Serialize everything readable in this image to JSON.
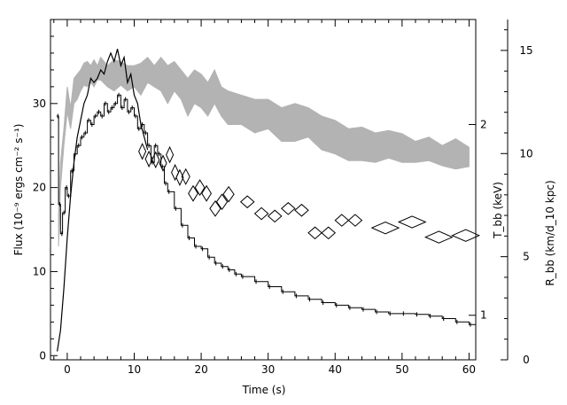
{
  "chart_data": {
    "type": "line",
    "xlabel": "Time (s)",
    "ylabel_left": "Flux (10⁻⁹ ergs cm⁻² s⁻¹)",
    "ylabel_right1": "T_bb (keV)",
    "ylabel_right2": "R_bb (km/d_10 kpc)",
    "xlim": [
      -2.5,
      61
    ],
    "ylim_flux": [
      -0.5,
      40
    ],
    "ylim_radius": [
      0,
      16.5
    ],
    "x_ticks": [
      0,
      10,
      20,
      30,
      40,
      50,
      60
    ],
    "x_tick_labels": [
      "0",
      "10",
      "20",
      "30",
      "40",
      "50",
      "60"
    ],
    "flux_ticks": [
      0,
      10,
      20,
      30
    ],
    "flux_tick_labels": [
      "0",
      "10",
      "20",
      "30"
    ],
    "temperature_ticks": [
      1,
      2
    ],
    "temperature_tick_labels": [
      "1",
      "2"
    ],
    "temperature_tick_flux_equivalent": [
      4.8,
      27.5
    ],
    "radius_ticks": [
      0,
      5,
      10,
      15
    ],
    "radius_tick_labels": [
      "0",
      "5",
      "10",
      "15"
    ],
    "series": [
      {
        "style": "step line, black",
        "x": [
          -1.6,
          -1.3,
          -1.0,
          -0.7,
          -0.3,
          0,
          0.5,
          1,
          1.5,
          2,
          2.5,
          3,
          3.5,
          4,
          4.5,
          5,
          5.5,
          6,
          6.5,
          7,
          7.5,
          8,
          8.5,
          9,
          9.5,
          10,
          10.5,
          11,
          11.5,
          12,
          12.5,
          13,
          13.5,
          14,
          14.5,
          15,
          16,
          17,
          18,
          19,
          20,
          21,
          22,
          23,
          24,
          25,
          26,
          28,
          30,
          32,
          34,
          36,
          38,
          40,
          42,
          44,
          46,
          48,
          50,
          52,
          54,
          56,
          58,
          60
        ],
        "flux": [
          28.5,
          18,
          14.5,
          17,
          20,
          19,
          22,
          24,
          25,
          26,
          26.5,
          28,
          27.5,
          28.5,
          29,
          28.5,
          30,
          29,
          29.5,
          30,
          31,
          29.5,
          30.5,
          29,
          29.5,
          28.5,
          27,
          27.5,
          26.5,
          25,
          23,
          25,
          24,
          22.5,
          20.5,
          19.5,
          17.5,
          15.5,
          14,
          13,
          12.7,
          11.7,
          11,
          10.6,
          10.2,
          9.7,
          9.4,
          8.8,
          8.2,
          7.6,
          7.1,
          6.7,
          6.3,
          6,
          5.7,
          5.5,
          5.2,
          5,
          5,
          4.9,
          4.7,
          4.4,
          4.0,
          3.7
        ]
      },
      {
        "style": "line, black",
        "x": [
          -1.5,
          -1.0,
          -0.5,
          0,
          0.5,
          1,
          1.5,
          2,
          2.5,
          3,
          3.5,
          4,
          4.5,
          5,
          5.5,
          6,
          6.5,
          7,
          7.5,
          8,
          8.5,
          9,
          9.5,
          10,
          10.5,
          11,
          11.5,
          12
        ],
        "flux": [
          0.5,
          3,
          8,
          14,
          19,
          23,
          26,
          28,
          30,
          31,
          33,
          32.5,
          33,
          34,
          33.5,
          35,
          36,
          35,
          36.5,
          34.5,
          35.5,
          32.5,
          33.5,
          31,
          30,
          27.5,
          26,
          24.5
        ]
      },
      {
        "style": "filled band, grey",
        "x": [
          -1.3,
          -1,
          -0.5,
          0,
          0.5,
          1,
          1.5,
          2,
          2.5,
          3,
          3.5,
          4,
          4.5,
          5,
          6,
          7,
          8,
          9,
          10,
          11,
          12,
          13,
          14,
          15,
          16,
          17,
          18,
          19,
          20,
          21,
          22,
          23,
          24,
          26,
          28,
          30,
          32,
          34,
          36,
          38,
          40,
          42,
          44,
          46,
          48,
          50,
          52,
          54,
          56,
          58,
          60
        ],
        "flux_low": [
          13,
          20,
          25,
          29,
          27,
          30,
          30.5,
          31.5,
          32.2,
          32,
          32.5,
          32,
          32.8,
          32.8,
          32,
          31.5,
          32.2,
          31.5,
          32,
          31,
          32.5,
          32,
          31.5,
          30,
          31.5,
          30.5,
          28.5,
          30,
          29.5,
          28.5,
          30,
          28.5,
          27.5,
          27.5,
          26.5,
          27,
          25.5,
          25.5,
          26,
          24.5,
          24,
          23.2,
          23.2,
          23,
          23.5,
          23,
          23,
          23.2,
          22.6,
          22.2,
          22.5
        ],
        "flux_high": [
          17,
          23,
          27,
          32,
          29.5,
          33,
          33.5,
          34,
          34.8,
          35,
          34.5,
          35.2,
          34.5,
          35.5,
          34.5,
          35.2,
          35,
          34.5,
          34.5,
          34.8,
          35.5,
          34.5,
          35.5,
          34.5,
          35,
          34,
          33,
          34,
          33.5,
          32.5,
          34,
          32,
          31.5,
          31,
          30.5,
          30.5,
          29.5,
          30,
          29.5,
          28.5,
          28,
          27,
          27.2,
          26.5,
          26.8,
          26.4,
          25.5,
          26,
          25,
          25.8,
          24.8
        ]
      },
      {
        "style": "diamond markers with x error extent",
        "x": [
          11.2,
          12.2,
          13.2,
          14.3,
          15.3,
          16.1,
          16.8,
          17.7,
          18.8,
          19.8,
          20.8,
          22.1,
          23.1,
          24.1,
          26.9,
          29,
          31,
          33,
          35,
          37,
          39,
          41,
          43,
          47.5,
          51.5,
          55.5,
          59.5
        ],
        "flux": [
          24.3,
          23.4,
          23.3,
          22.9,
          23.9,
          21.8,
          21.2,
          21.3,
          19.3,
          20.0,
          19.3,
          17.5,
          18.3,
          19.2,
          18.3,
          16.9,
          16.6,
          17.5,
          17.3,
          14.6,
          14.6,
          16.1,
          16.1,
          15.2,
          15.9,
          14.1,
          14.3
        ],
        "xerr": [
          0.4,
          0.4,
          0.4,
          0.5,
          0.5,
          0.5,
          0.5,
          0.6,
          0.7,
          0.7,
          0.7,
          0.8,
          0.8,
          0.8,
          1.0,
          1.0,
          1.0,
          1.0,
          1.0,
          1.0,
          1.0,
          1.0,
          1.0,
          2.0,
          2.0,
          2.0,
          2.0
        ],
        "yerr": [
          0.9,
          0.9,
          0.9,
          0.9,
          0.9,
          0.9,
          0.9,
          0.9,
          0.9,
          0.9,
          0.9,
          0.9,
          0.9,
          0.9,
          0.7,
          0.7,
          0.7,
          0.7,
          0.7,
          0.7,
          0.7,
          0.7,
          0.7,
          0.7,
          0.7,
          0.7,
          0.7
        ]
      }
    ]
  }
}
